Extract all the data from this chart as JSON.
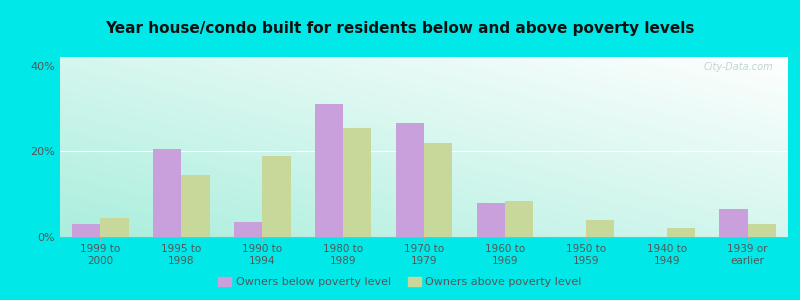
{
  "title": "Year house/condo built for residents below and above poverty levels",
  "categories": [
    "1999 to\n2000",
    "1995 to\n1998",
    "1990 to\n1994",
    "1980 to\n1989",
    "1970 to\n1979",
    "1960 to\n1969",
    "1950 to\n1959",
    "1940 to\n1949",
    "1939 or\nearlier"
  ],
  "below_poverty": [
    3.0,
    20.5,
    3.5,
    31.0,
    26.5,
    8.0,
    0.0,
    0.0,
    6.5
  ],
  "above_poverty": [
    4.5,
    14.5,
    19.0,
    25.5,
    22.0,
    8.5,
    4.0,
    2.0,
    3.0
  ],
  "below_color": "#c9a0dc",
  "above_color": "#c8d89a",
  "ylim": [
    0,
    42
  ],
  "yticks": [
    0,
    20,
    40
  ],
  "ytick_labels": [
    "0%",
    "20%",
    "40%"
  ],
  "bar_width": 0.35,
  "outer_color": "#00e8e8",
  "legend_below": "Owners below poverty level",
  "legend_above": "Owners above poverty level",
  "watermark": "City-Data.com",
  "title_fontsize": 11,
  "tick_fontsize": 7.5
}
